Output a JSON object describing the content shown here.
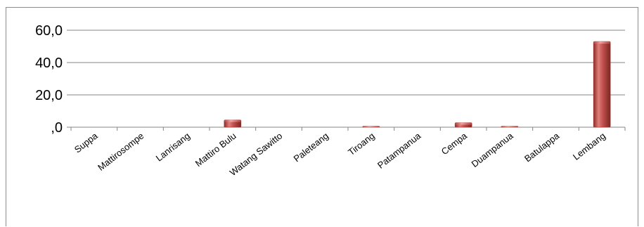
{
  "chart_data": {
    "type": "bar",
    "categories": [
      "Suppa",
      "Mattirosompe",
      "Lanrisang",
      "Mattiro Bulu",
      "Watang Sawitto",
      "Paleteang",
      "Tiroang",
      "Patampanua",
      "Cempa",
      "Duampanua",
      "Batulappa",
      "Lembang"
    ],
    "values": [
      0,
      0,
      0,
      4.5,
      0,
      0,
      0.4,
      0,
      2.8,
      0.4,
      0,
      53
    ],
    "ylim": [
      0,
      60
    ],
    "yticks": [
      0,
      20,
      40,
      60
    ],
    "ytick_labels": [
      ",0",
      "20,0",
      "40,0",
      "60,0"
    ],
    "grid": true,
    "bar_color": "#c0504d"
  }
}
